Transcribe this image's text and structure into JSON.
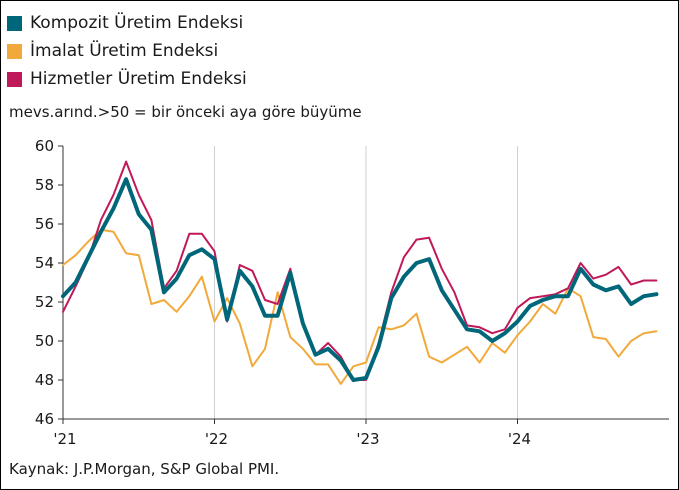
{
  "chart_data": {
    "type": "line",
    "title": "",
    "xlabel": "",
    "ylabel": "",
    "subtitle": "mevs.arınd.>50 = bir önceki aya göre büyüme",
    "source": "Kaynak: J.P.Morgan, S&P Global PMI.",
    "ylim": [
      46,
      60
    ],
    "yticks": [
      46,
      48,
      50,
      52,
      54,
      56,
      58,
      60
    ],
    "xticks": [
      {
        "label": "'21",
        "index": 0
      },
      {
        "label": "'22",
        "index": 12
      },
      {
        "label": "'23",
        "index": 24
      },
      {
        "label": "'24",
        "index": 36
      }
    ],
    "grid": "vertical",
    "legend_position": "top-left",
    "series": [
      {
        "name": "Kompozit Üretim Endeksi",
        "color": "#00677a",
        "values": [
          52.3,
          53.0,
          54.3,
          55.6,
          56.8,
          58.3,
          56.5,
          55.7,
          52.5,
          53.2,
          54.4,
          54.7,
          54.2,
          51.1,
          53.6,
          52.8,
          51.3,
          51.3,
          53.5,
          50.9,
          49.3,
          49.6,
          49.0,
          48.0,
          48.1,
          49.7,
          52.2,
          53.3,
          54.0,
          54.2,
          52.6,
          51.6,
          50.6,
          50.5,
          50.0,
          50.4,
          51.0,
          51.8,
          52.1,
          52.3,
          52.3,
          53.7,
          52.9,
          52.6,
          52.8,
          51.9,
          52.3,
          52.4
        ]
      },
      {
        "name": "İmalat Üretim Endeksi",
        "color": "#f2a93b",
        "values": [
          53.9,
          54.4,
          55.1,
          55.7,
          55.6,
          54.5,
          54.4,
          51.9,
          52.1,
          51.5,
          52.3,
          53.3,
          51.0,
          52.2,
          50.9,
          48.7,
          49.6,
          52.5,
          50.2,
          49.6,
          48.8,
          48.8,
          47.8,
          48.7,
          48.9,
          50.7,
          50.6,
          50.8,
          51.4,
          49.2,
          48.9,
          49.3,
          49.7,
          48.9,
          49.9,
          49.4,
          50.3,
          51.0,
          51.9,
          51.4,
          52.7,
          52.3,
          50.2,
          50.1,
          49.2,
          50.0,
          50.4,
          50.5
        ]
      },
      {
        "name": "Hizmetler Üretim Endeksi",
        "color": "#c0195a",
        "values": [
          51.5,
          52.8,
          54.2,
          56.2,
          57.5,
          59.2,
          57.5,
          56.2,
          52.7,
          53.6,
          55.5,
          55.5,
          54.6,
          51.0,
          53.9,
          53.6,
          52.1,
          51.9,
          53.7,
          50.8,
          49.3,
          49.9,
          49.2,
          48.0,
          48.0,
          49.9,
          52.5,
          54.3,
          55.2,
          55.3,
          53.7,
          52.5,
          50.8,
          50.7,
          50.4,
          50.6,
          51.7,
          52.2,
          52.3,
          52.4,
          52.7,
          54.0,
          53.2,
          53.4,
          53.8,
          52.9,
          53.1,
          53.1
        ]
      }
    ]
  }
}
